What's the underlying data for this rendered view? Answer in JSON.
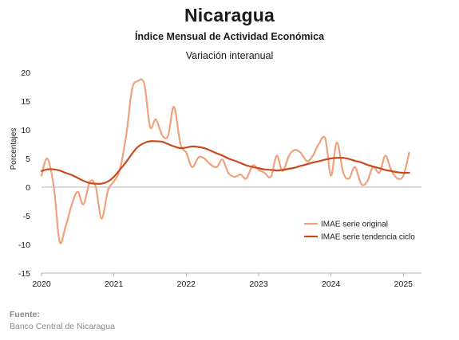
{
  "chart_data": {
    "type": "line",
    "title": "Nicaragua",
    "subtitle": "Índice Mensual de Actividad Económica",
    "subtitle2": "Variación interanual",
    "ylabel": "Porcentajes",
    "xlabel": "",
    "ylim": [
      -15,
      20
    ],
    "yticks": [
      -15,
      -10,
      -5,
      0,
      5,
      10,
      15,
      20
    ],
    "xlim": [
      2020.0,
      2025.25
    ],
    "xticks": [
      2020,
      2021,
      2022,
      2023,
      2024,
      2025
    ],
    "legend_position": "center-right",
    "series": [
      {
        "name": "IMAE serie original",
        "color": "#f0a07a",
        "points": [
          [
            2020.0,
            2.0
          ],
          [
            2020.08,
            5.0
          ],
          [
            2020.17,
            0.0
          ],
          [
            2020.25,
            -9.5
          ],
          [
            2020.33,
            -7.0
          ],
          [
            2020.42,
            -3.0
          ],
          [
            2020.5,
            -0.8
          ],
          [
            2020.58,
            -3.0
          ],
          [
            2020.67,
            1.0
          ],
          [
            2020.75,
            0.0
          ],
          [
            2020.83,
            -5.5
          ],
          [
            2020.92,
            -0.5
          ],
          [
            2021.0,
            1.0
          ],
          [
            2021.08,
            3.0
          ],
          [
            2021.17,
            9.0
          ],
          [
            2021.25,
            17.0
          ],
          [
            2021.33,
            18.5
          ],
          [
            2021.42,
            18.0
          ],
          [
            2021.5,
            10.5
          ],
          [
            2021.58,
            11.8
          ],
          [
            2021.67,
            9.0
          ],
          [
            2021.75,
            9.0
          ],
          [
            2021.83,
            14.0
          ],
          [
            2021.92,
            7.5
          ],
          [
            2022.0,
            6.0
          ],
          [
            2022.08,
            3.5
          ],
          [
            2022.17,
            5.2
          ],
          [
            2022.25,
            5.0
          ],
          [
            2022.33,
            4.0
          ],
          [
            2022.42,
            3.5
          ],
          [
            2022.5,
            4.8
          ],
          [
            2022.58,
            2.5
          ],
          [
            2022.67,
            1.8
          ],
          [
            2022.75,
            2.2
          ],
          [
            2022.83,
            1.5
          ],
          [
            2022.92,
            3.8
          ],
          [
            2023.0,
            3.0
          ],
          [
            2023.08,
            2.5
          ],
          [
            2023.17,
            1.8
          ],
          [
            2023.25,
            5.5
          ],
          [
            2023.33,
            2.8
          ],
          [
            2023.42,
            5.5
          ],
          [
            2023.5,
            6.5
          ],
          [
            2023.58,
            6.0
          ],
          [
            2023.67,
            4.5
          ],
          [
            2023.75,
            5.5
          ],
          [
            2023.83,
            7.5
          ],
          [
            2023.92,
            8.5
          ],
          [
            2024.0,
            2.0
          ],
          [
            2024.08,
            7.8
          ],
          [
            2024.17,
            2.5
          ],
          [
            2024.25,
            1.5
          ],
          [
            2024.33,
            3.5
          ],
          [
            2024.42,
            0.5
          ],
          [
            2024.5,
            1.0
          ],
          [
            2024.58,
            3.5
          ],
          [
            2024.67,
            2.5
          ],
          [
            2024.75,
            5.5
          ],
          [
            2024.83,
            3.0
          ],
          [
            2024.92,
            1.5
          ],
          [
            2025.0,
            2.0
          ],
          [
            2025.08,
            6.0
          ]
        ]
      },
      {
        "name": "IMAE serie  tendencia ciclo",
        "color": "#c94a1c",
        "points": [
          [
            2020.0,
            2.8
          ],
          [
            2020.08,
            3.1
          ],
          [
            2020.17,
            3.1
          ],
          [
            2020.25,
            2.9
          ],
          [
            2020.33,
            2.5
          ],
          [
            2020.42,
            2.1
          ],
          [
            2020.5,
            1.6
          ],
          [
            2020.58,
            1.1
          ],
          [
            2020.67,
            0.7
          ],
          [
            2020.75,
            0.6
          ],
          [
            2020.83,
            0.6
          ],
          [
            2020.92,
            1.0
          ],
          [
            2021.0,
            1.8
          ],
          [
            2021.08,
            3.0
          ],
          [
            2021.17,
            4.4
          ],
          [
            2021.25,
            5.8
          ],
          [
            2021.33,
            7.0
          ],
          [
            2021.42,
            7.7
          ],
          [
            2021.5,
            8.0
          ],
          [
            2021.58,
            8.0
          ],
          [
            2021.67,
            7.9
          ],
          [
            2021.75,
            7.5
          ],
          [
            2021.83,
            7.1
          ],
          [
            2021.92,
            6.8
          ],
          [
            2022.0,
            6.9
          ],
          [
            2022.08,
            7.1
          ],
          [
            2022.17,
            7.0
          ],
          [
            2022.25,
            6.8
          ],
          [
            2022.33,
            6.4
          ],
          [
            2022.42,
            5.9
          ],
          [
            2022.5,
            5.5
          ],
          [
            2022.58,
            5.0
          ],
          [
            2022.67,
            4.6
          ],
          [
            2022.75,
            4.2
          ],
          [
            2022.83,
            3.8
          ],
          [
            2022.92,
            3.5
          ],
          [
            2023.0,
            3.3
          ],
          [
            2023.08,
            3.1
          ],
          [
            2023.17,
            3.0
          ],
          [
            2023.25,
            2.9
          ],
          [
            2023.33,
            3.0
          ],
          [
            2023.42,
            3.2
          ],
          [
            2023.5,
            3.4
          ],
          [
            2023.58,
            3.7
          ],
          [
            2023.67,
            4.0
          ],
          [
            2023.75,
            4.3
          ],
          [
            2023.83,
            4.5
          ],
          [
            2023.92,
            4.8
          ],
          [
            2024.0,
            5.0
          ],
          [
            2024.08,
            5.1
          ],
          [
            2024.17,
            5.1
          ],
          [
            2024.25,
            4.9
          ],
          [
            2024.33,
            4.6
          ],
          [
            2024.42,
            4.3
          ],
          [
            2024.5,
            3.9
          ],
          [
            2024.58,
            3.6
          ],
          [
            2024.67,
            3.3
          ],
          [
            2024.75,
            3.0
          ],
          [
            2024.83,
            2.8
          ],
          [
            2024.92,
            2.6
          ],
          [
            2025.0,
            2.5
          ],
          [
            2025.08,
            2.5
          ]
        ]
      }
    ]
  },
  "source": {
    "label": "Fuente:",
    "text": "Banco Central de Nicaragua"
  }
}
